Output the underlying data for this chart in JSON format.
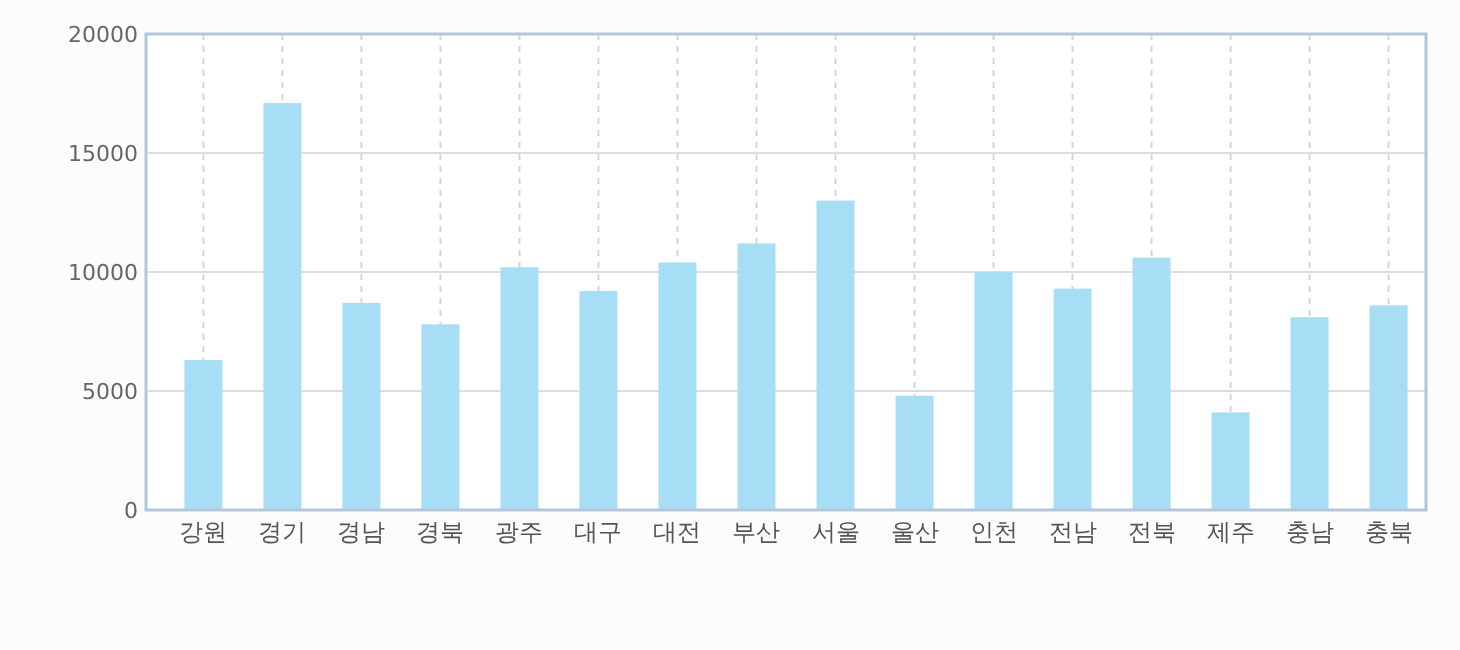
{
  "chart_data": {
    "type": "bar",
    "categories": [
      "강원",
      "경기",
      "경남",
      "경북",
      "광주",
      "대구",
      "대전",
      "부산",
      "서울",
      "울산",
      "인천",
      "전남",
      "전북",
      "제주",
      "충남",
      "충북"
    ],
    "series": [
      {
        "color": "#a8ddf6",
        "values": [
          6300,
          17100,
          8700,
          7800,
          10200,
          9200,
          10400,
          11200,
          13000,
          4800,
          10000,
          9300,
          10600,
          4100,
          8100,
          8600
        ]
      }
    ],
    "ylim": [
      0,
      20000
    ],
    "yticks": [
      0,
      5000,
      10000,
      15000,
      20000
    ],
    "grid": true
  }
}
